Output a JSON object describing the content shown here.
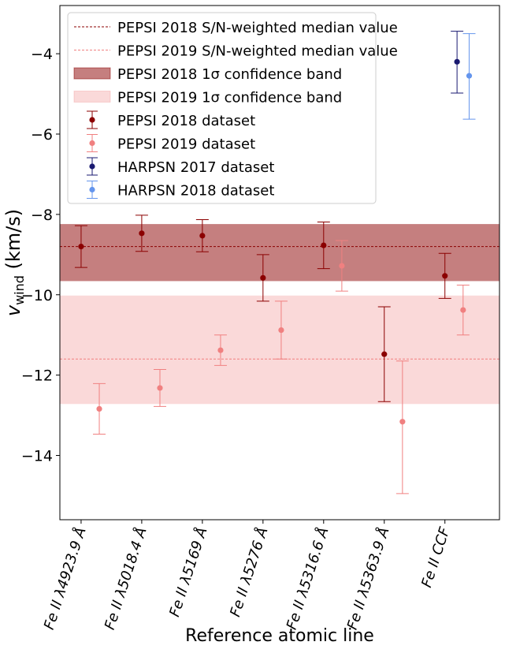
{
  "chart_data": {
    "type": "scatter",
    "title": "",
    "xlabel": "Reference atomic line",
    "ylabel": "v_wind (km/s)",
    "ylabel_main": "v",
    "ylabel_sub": "wind",
    "ylabel_units": " (km/s)",
    "ylim": [
      -15.6,
      -2.8
    ],
    "yticks": [
      -14,
      -12,
      -10,
      -8,
      -6,
      -4
    ],
    "ytick_labels": [
      "−14",
      "−12",
      "−10",
      "−8",
      "−6",
      "−4"
    ],
    "categories": [
      "Fe II λ4923.9 Å",
      "Fe II λ5018.4 Å",
      "Fe II λ5169 Å",
      "Fe II λ5276 Å",
      "Fe II λ5316.6 Å",
      "Fe II λ5363.9 Å",
      "Fe II CCF"
    ],
    "grid": false,
    "legend_position": "top-left",
    "reference_lines": [
      {
        "name": "PEPSI 2018 S/N-weighted median value",
        "y": -8.8,
        "color": "#8b0000"
      },
      {
        "name": "PEPSI 2019 S/N-weighted median value",
        "y": -11.6,
        "color": "#f08080"
      }
    ],
    "bands": [
      {
        "name": "PEPSI 2018 1σ confidence band",
        "y_low": -9.66,
        "y_high": -8.24,
        "color": "#8b0000",
        "opacity": 0.5
      },
      {
        "name": "PEPSI 2019 1σ confidence band",
        "y_low": -12.72,
        "y_high": -10.02,
        "color": "#f08080",
        "opacity": 0.3
      }
    ],
    "series": [
      {
        "name": "PEPSI 2018 dataset",
        "color": "#8b0000",
        "x_offset": 0,
        "points": [
          {
            "x": 0,
            "y": -8.8,
            "err_low": 0.52,
            "err_high": 0.52
          },
          {
            "x": 1,
            "y": -8.47,
            "err_low": 0.45,
            "err_high": 0.45
          },
          {
            "x": 2,
            "y": -8.53,
            "err_low": 0.4,
            "err_high": 0.4
          },
          {
            "x": 3,
            "y": -9.58,
            "err_low": 0.58,
            "err_high": 0.58
          },
          {
            "x": 4,
            "y": -8.77,
            "err_low": 0.58,
            "err_high": 0.58
          },
          {
            "x": 5,
            "y": -11.48,
            "err_low": 1.18,
            "err_high": 1.18
          },
          {
            "x": 6,
            "y": -9.53,
            "err_low": 0.56,
            "err_high": 0.56
          }
        ]
      },
      {
        "name": "PEPSI 2019 dataset",
        "color": "#f08080",
        "x_offset": 0.3,
        "points": [
          {
            "x": 0,
            "y": -12.84,
            "err_low": 0.63,
            "err_high": 0.63
          },
          {
            "x": 1,
            "y": -12.32,
            "err_low": 0.46,
            "err_high": 0.46
          },
          {
            "x": 2,
            "y": -11.38,
            "err_low": 0.38,
            "err_high": 0.38
          },
          {
            "x": 3,
            "y": -10.88,
            "err_low": 0.72,
            "err_high": 0.72
          },
          {
            "x": 4,
            "y": -9.28,
            "err_low": 0.63,
            "err_high": 0.63
          },
          {
            "x": 5,
            "y": -13.16,
            "err_low": 1.79,
            "err_high": 1.51
          },
          {
            "x": 6,
            "y": -10.38,
            "err_low": 0.62,
            "err_high": 0.62
          }
        ]
      },
      {
        "name": "HARPSN 2017 dataset",
        "color": "#191970",
        "x_offset": 0.2,
        "points": [
          {
            "x": 6,
            "y": -4.2,
            "err_low": 0.78,
            "err_high": 0.76
          }
        ]
      },
      {
        "name": "HARPSN 2018 dataset",
        "color": "#6495ed",
        "x_offset": 0.4,
        "points": [
          {
            "x": 6,
            "y": -4.55,
            "err_low": 1.08,
            "err_high": 1.05
          }
        ]
      }
    ]
  }
}
